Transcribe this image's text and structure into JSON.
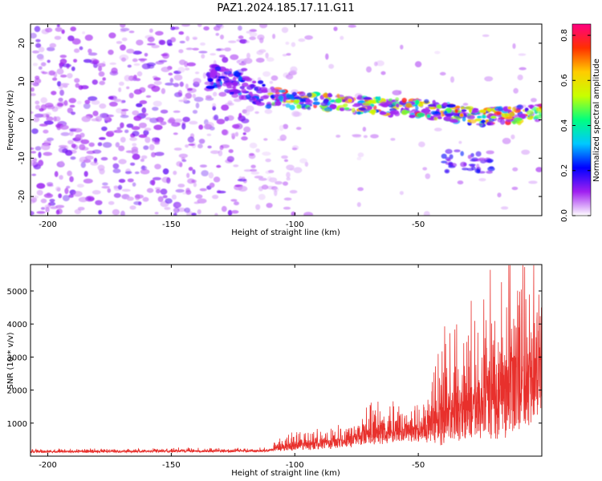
{
  "title": "PAZ1.2024.185.17.11.G11",
  "chart_data": [
    {
      "type": "heatmap",
      "xlabel": "Height of straight line (km)",
      "ylabel": "Frequency (Hz)",
      "xlim": [
        -207,
        0
      ],
      "ylim": [
        -25,
        25
      ],
      "xticks": [
        -200,
        -150,
        -100,
        -50
      ],
      "yticks": [
        -20,
        -10,
        0,
        10,
        20
      ],
      "colorbar": {
        "label": "Normalized spectral amplitude",
        "range": [
          0,
          0.85
        ],
        "ticks": [
          0.0,
          0.2,
          0.4,
          0.6,
          0.8
        ],
        "colormap": [
          "#ffffff",
          "#a020f0",
          "#0000ff",
          "#00c8ff",
          "#00ff80",
          "#c8ff00",
          "#ffcc00",
          "#ff3000",
          "#ff0080"
        ]
      },
      "ridge": {
        "description_points": [
          {
            "x": -130,
            "y": 11
          },
          {
            "x": -115,
            "y": 7
          },
          {
            "x": -100,
            "y": 5
          },
          {
            "x": -75,
            "y": 4
          },
          {
            "x": -50,
            "y": 3
          },
          {
            "x": -25,
            "y": 0.5
          },
          {
            "x": 0,
            "y": 2
          }
        ],
        "peak_amplitude": 0.8
      }
    },
    {
      "type": "line",
      "xlabel": "Height of straight line (km)",
      "ylabel": "SNR (10 * v/v)",
      "xlim": [
        -207,
        0
      ],
      "ylim": [
        0,
        5800
      ],
      "xticks": [
        -200,
        -150,
        -100,
        -50
      ],
      "yticks": [
        1000,
        2000,
        3000,
        4000,
        5000
      ],
      "color": "#e8302c",
      "envelope": [
        {
          "x": -207,
          "base": 120,
          "amp": 90
        },
        {
          "x": -110,
          "base": 150,
          "amp": 100
        },
        {
          "x": -105,
          "base": 250,
          "amp": 400
        },
        {
          "x": -80,
          "base": 350,
          "amp": 500
        },
        {
          "x": -70,
          "base": 550,
          "amp": 900
        },
        {
          "x": -50,
          "base": 650,
          "amp": 900
        },
        {
          "x": -40,
          "base": 900,
          "amp": 2500
        },
        {
          "x": -25,
          "base": 1200,
          "amp": 3200
        },
        {
          "x": -15,
          "base": 1500,
          "amp": 4200
        },
        {
          "x": 0,
          "base": 2000,
          "amp": 3500
        }
      ]
    }
  ]
}
